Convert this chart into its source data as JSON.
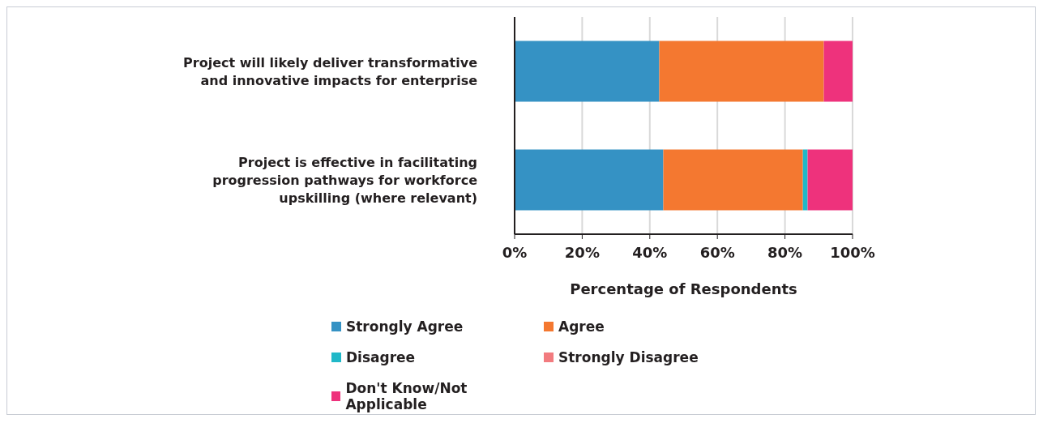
{
  "chart_data": {
    "type": "bar",
    "orientation": "horizontal",
    "stacked": true,
    "xlabel": "Percentage of Respondents",
    "categories": [
      "Project will likely deliver transformative and innovative impacts for enterprise",
      "Project is effective in facilitating progression pathways for workforce upskilling (where relevant)"
    ],
    "series": [
      {
        "name": "Strongly Agree",
        "color": "#3592c4",
        "values": [
          42.8,
          44.0
        ]
      },
      {
        "name": "Agree",
        "color": "#f47830",
        "values": [
          48.7,
          41.3
        ]
      },
      {
        "name": "Disagree",
        "color": "#20b8c8",
        "values": [
          0,
          1.4
        ]
      },
      {
        "name": "Strongly Disagree",
        "color": "#f27b7f",
        "values": [
          0,
          0
        ]
      },
      {
        "name": "Don't Know/Not Applicable",
        "color": "#ee327c",
        "values": [
          8.5,
          13.3
        ]
      }
    ],
    "xlim": [
      0,
      100
    ],
    "xticks": [
      {
        "value": 0,
        "label": "0%"
      },
      {
        "value": 20,
        "label": "20%"
      },
      {
        "value": 40,
        "label": "40%"
      },
      {
        "value": 60,
        "label": "60%"
      },
      {
        "value": 80,
        "label": "80%"
      },
      {
        "value": 100,
        "label": "100%"
      }
    ],
    "grid": "x",
    "legend": "bottom"
  }
}
